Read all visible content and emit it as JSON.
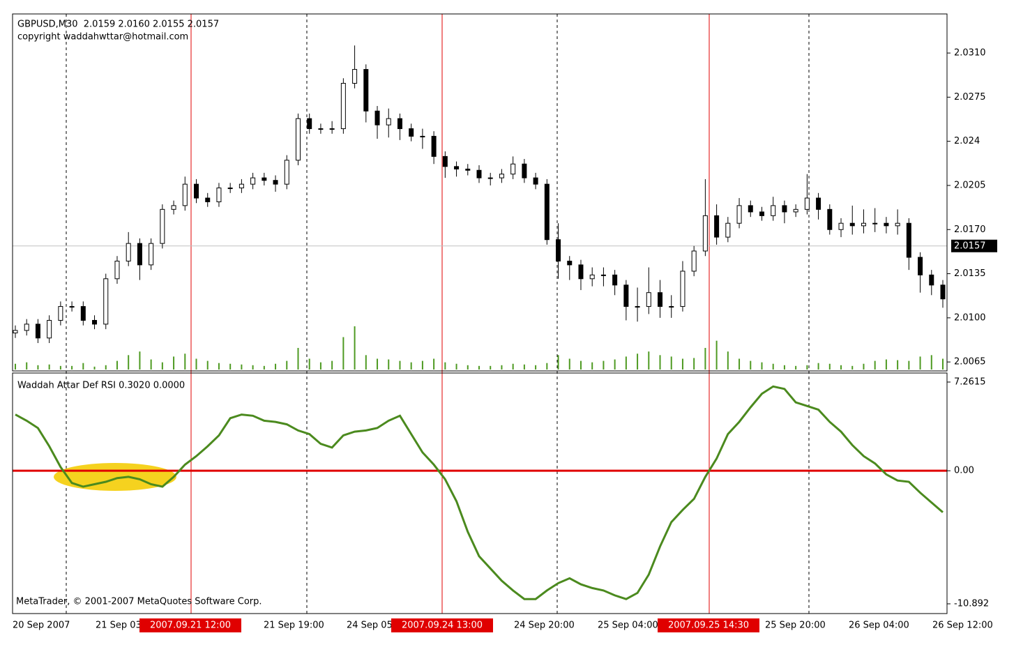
{
  "chart_data": [
    {
      "type": "candlestick",
      "title": "GBPUSD,M30  2.0159 2.0160 2.0155 2.0157",
      "subtitle": "copyright waddahwttar@hotmail.com",
      "open": [
        2.0088,
        2.009,
        2.0095,
        2.0084,
        2.0098,
        2.0109,
        2.0109,
        2.0098,
        2.0095,
        2.0131,
        2.0145,
        2.0159,
        2.0142,
        2.0159,
        2.0186,
        2.0189,
        2.0206,
        2.0195,
        2.0192,
        2.0203,
        2.0203,
        2.0206,
        2.0211,
        2.0209,
        2.0206,
        2.0225,
        2.0258,
        2.025,
        2.025,
        2.025,
        2.0286,
        2.0297,
        2.0264,
        2.0253,
        2.0258,
        2.025,
        2.0244,
        2.0244,
        2.0228,
        2.022,
        2.0218,
        2.0217,
        2.0211,
        2.0211,
        2.0214,
        2.0222,
        2.0211,
        2.0206,
        2.0162,
        2.0145,
        2.0142,
        2.0131,
        2.0134,
        2.0134,
        2.0126,
        2.0109,
        2.0109,
        2.012,
        2.0109,
        2.0109,
        2.0137,
        2.0153,
        2.0181,
        2.0164,
        2.0175,
        2.0189,
        2.0184,
        2.0181,
        2.0189,
        2.0184,
        2.0186,
        2.0195,
        2.0186,
        2.017,
        2.0175,
        2.0173,
        2.0175,
        2.0175,
        2.0173,
        2.0175,
        2.0148,
        2.0134,
        2.0126
      ],
      "high": [
        2.0094,
        2.0099,
        2.0099,
        2.0102,
        2.0113,
        2.0113,
        2.0113,
        2.0102,
        2.0135,
        2.0149,
        2.0168,
        2.0163,
        2.0163,
        2.019,
        2.0193,
        2.0212,
        2.021,
        2.0199,
        2.0207,
        2.0207,
        2.021,
        2.0215,
        2.0215,
        2.0213,
        2.0229,
        2.0262,
        2.0262,
        2.0254,
        2.0256,
        2.029,
        2.0316,
        2.0301,
        2.0268,
        2.0266,
        2.0262,
        2.0254,
        2.025,
        2.0248,
        2.0232,
        2.0224,
        2.0222,
        2.0221,
        2.0215,
        2.0218,
        2.0228,
        2.0226,
        2.0215,
        2.021,
        2.0175,
        2.0149,
        2.0146,
        2.014,
        2.014,
        2.0138,
        2.013,
        2.0124,
        2.014,
        2.013,
        2.0118,
        2.0145,
        2.0157,
        2.021,
        2.019,
        2.018,
        2.0195,
        2.0193,
        2.0188,
        2.0196,
        2.0193,
        2.019,
        2.0214,
        2.0199,
        2.019,
        2.0179,
        2.0189,
        2.0186,
        2.0187,
        2.018,
        2.0186,
        2.0179,
        2.0152,
        2.0138,
        2.013
      ],
      "low": [
        2.0084,
        2.0086,
        2.008,
        2.008,
        2.0094,
        2.0105,
        2.0094,
        2.0091,
        2.0091,
        2.0127,
        2.0141,
        2.013,
        2.0138,
        2.0155,
        2.0182,
        2.0185,
        2.0191,
        2.0188,
        2.0188,
        2.0199,
        2.0199,
        2.0202,
        2.0205,
        2.02,
        2.0202,
        2.0221,
        2.0246,
        2.0246,
        2.0246,
        2.0246,
        2.0282,
        2.0255,
        2.0242,
        2.0243,
        2.0241,
        2.024,
        2.0234,
        2.0222,
        2.0211,
        2.0212,
        2.0213,
        2.0207,
        2.0205,
        2.0207,
        2.021,
        2.0207,
        2.0202,
        2.0158,
        2.0131,
        2.013,
        2.0122,
        2.0125,
        2.0125,
        2.0118,
        2.0098,
        2.0097,
        2.0103,
        2.01,
        2.01,
        2.0105,
        2.0133,
        2.0149,
        2.0158,
        2.016,
        2.0171,
        2.018,
        2.0177,
        2.0177,
        2.0175,
        2.018,
        2.0182,
        2.0178,
        2.0166,
        2.0164,
        2.0166,
        2.0167,
        2.0168,
        2.0167,
        2.0166,
        2.0138,
        2.012,
        2.0118,
        2.0108
      ],
      "close": [
        2.009,
        2.0095,
        2.0084,
        2.0098,
        2.0109,
        2.0109,
        2.0098,
        2.0095,
        2.0131,
        2.0145,
        2.0159,
        2.0142,
        2.0159,
        2.0186,
        2.0189,
        2.0206,
        2.0195,
        2.0192,
        2.0203,
        2.0203,
        2.0206,
        2.0211,
        2.0209,
        2.0206,
        2.0225,
        2.0258,
        2.025,
        2.025,
        2.025,
        2.0286,
        2.0297,
        2.0264,
        2.0253,
        2.0258,
        2.025,
        2.0244,
        2.0244,
        2.0228,
        2.022,
        2.0218,
        2.0217,
        2.0211,
        2.0211,
        2.0214,
        2.0222,
        2.0211,
        2.0206,
        2.0162,
        2.0145,
        2.0142,
        2.0131,
        2.0134,
        2.0134,
        2.0126,
        2.0109,
        2.0109,
        2.012,
        2.0109,
        2.0109,
        2.0137,
        2.0153,
        2.0181,
        2.0164,
        2.0175,
        2.0189,
        2.0184,
        2.0181,
        2.0189,
        2.0184,
        2.0186,
        2.0195,
        2.0186,
        2.017,
        2.0175,
        2.0173,
        2.0175,
        2.0175,
        2.0173,
        2.0175,
        2.0148,
        2.0134,
        2.0126,
        2.0115
      ],
      "volume": [
        8,
        10,
        6,
        7,
        5,
        5,
        9,
        4,
        6,
        12,
        20,
        25,
        14,
        10,
        18,
        22,
        15,
        12,
        9,
        8,
        7,
        6,
        5,
        8,
        12,
        30,
        15,
        10,
        12,
        45,
        60,
        20,
        15,
        14,
        12,
        10,
        12,
        15,
        10,
        8,
        6,
        5,
        5,
        6,
        8,
        7,
        6,
        9,
        20,
        15,
        12,
        10,
        12,
        14,
        18,
        22,
        25,
        20,
        18,
        15,
        16,
        30,
        40,
        25,
        15,
        12,
        10,
        8,
        6,
        5,
        6,
        9,
        8,
        6,
        5,
        8,
        12,
        14,
        13,
        12,
        18,
        20,
        15
      ],
      "volume_color": "#4e9a22",
      "last_price": 2.0157,
      "ylim": [
        2.0059,
        2.0341
      ],
      "yticks": [
        {
          "value": 2.031,
          "label": "2.0310"
        },
        2.0275,
        2.024,
        {
          "value": 2.0205,
          "label": "2.0205"
        },
        {
          "value": 2.017,
          "label": "2.0170"
        },
        2.0135,
        {
          "value": 2.01,
          "label": "2.0100"
        },
        2.0065
      ]
    },
    {
      "type": "line",
      "title": "Waddah Attar Def RSI 0.3020 0.0000",
      "footer": "MetaTrader, © 2001-2007 MetaQuotes Software Corp.",
      "color": "#4b8a1e",
      "level_color": "#e00000",
      "values": [
        4.6,
        4.1,
        3.5,
        2.0,
        0.3,
        -1.0,
        -1.3,
        -1.1,
        -0.9,
        -0.6,
        -0.5,
        -0.7,
        -1.1,
        -1.3,
        -0.5,
        0.5,
        1.2,
        2.0,
        2.9,
        4.3,
        4.6,
        4.5,
        4.1,
        4.0,
        3.8,
        3.3,
        3.0,
        2.2,
        1.9,
        2.9,
        3.2,
        3.3,
        3.5,
        4.1,
        4.5,
        3.0,
        1.5,
        0.5,
        -0.7,
        -2.5,
        -5.0,
        -7.0,
        -8.0,
        -9.0,
        -9.8,
        -10.5,
        -10.5,
        -9.8,
        -9.2,
        -8.8,
        -9.3,
        -9.6,
        -9.8,
        -10.2,
        -10.5,
        -10.0,
        -8.5,
        -6.2,
        -4.2,
        -3.2,
        -2.3,
        -0.5,
        1.0,
        3.0,
        4.0,
        5.2,
        6.3,
        6.9,
        6.7,
        5.6,
        5.3,
        5.0,
        4.0,
        3.2,
        2.1,
        1.2,
        0.6,
        -0.3,
        -0.8,
        -0.9,
        -1.8,
        -2.6,
        -3.4
      ],
      "ylim": [
        -11.69,
        7.83
      ],
      "yticks": [
        7.2615,
        {
          "value": 0,
          "label": "0.00"
        },
        -10.892
      ]
    }
  ],
  "x_axis": {
    "labels": [
      "20 Sep 2007",
      "21 Sep 03:00",
      "21 Sep 19:00",
      "24 Sep 05:00",
      "24 Sep 20:00",
      "25 Sep 04:00",
      "25 Sep 20:00",
      "26 Sep 04:00",
      "26 Sep 12:00"
    ],
    "markers": [
      "2007.09.21 12:00",
      "2007.09.24 13:00",
      "2007.09.25 14:30"
    ]
  }
}
